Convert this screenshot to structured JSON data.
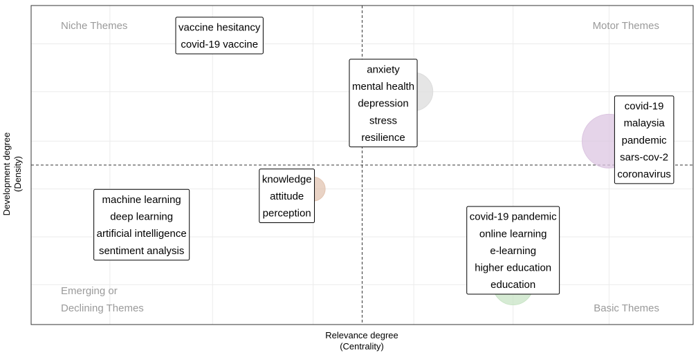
{
  "chart_data": {
    "type": "scatter",
    "xlabel": [
      "Relevance degree",
      "(Centrality)"
    ],
    "ylabel": [
      "Development degree",
      "(Density)"
    ],
    "xlim": [
      0,
      1
    ],
    "ylim": [
      0,
      1
    ],
    "grid": true,
    "centerlines": {
      "x": 0.5,
      "y": 0.5
    },
    "quadrant_labels": [
      {
        "id": "niche",
        "text": [
          "Niche Themes"
        ],
        "corner": "top-left"
      },
      {
        "id": "motor",
        "text": [
          "Motor Themes"
        ],
        "corner": "top-right"
      },
      {
        "id": "emerging",
        "text": [
          "Emerging or",
          "Declining Themes"
        ],
        "corner": "bottom-left"
      },
      {
        "id": "basic",
        "text": [
          "Basic Themes"
        ],
        "corner": "bottom-right"
      }
    ],
    "clusters": [
      {
        "id": "vaccine",
        "x": 0.274,
        "y": 0.88,
        "size": 1,
        "color": "#b7cfe6",
        "terms": [
          "vaccine hesitancy",
          "covid-19 vaccine"
        ]
      },
      {
        "id": "anxiety",
        "x": 0.578,
        "y": 0.73,
        "size": 4,
        "color": "#dcdcdc",
        "terms": [
          "anxiety",
          "mental health",
          "depression",
          "stress",
          "resilience"
        ]
      },
      {
        "id": "covid",
        "x": 0.873,
        "y": 0.575,
        "size": 8,
        "color": "#dcc6e1",
        "terms": [
          "covid-19",
          "malaysia",
          "pandemic",
          "sars-cov-2",
          "coronavirus"
        ]
      },
      {
        "id": "knowledge",
        "x": 0.426,
        "y": 0.425,
        "size": 1.6,
        "color": "#e2c4b1",
        "terms": [
          "knowledge",
          "attitude",
          "perception"
        ]
      },
      {
        "id": "ml",
        "x": 0.119,
        "y": 0.275,
        "size": 2.5,
        "color": "#f7c5c5",
        "terms": [
          "machine learning",
          "deep learning",
          "artificial intelligence",
          "sentiment analysis"
        ]
      },
      {
        "id": "online",
        "x": 0.728,
        "y": 0.125,
        "size": 4.5,
        "color": "#c8e4c5",
        "terms": [
          "covid-19 pandemic",
          "online learning",
          "e-learning",
          "higher education",
          "education"
        ]
      }
    ]
  }
}
